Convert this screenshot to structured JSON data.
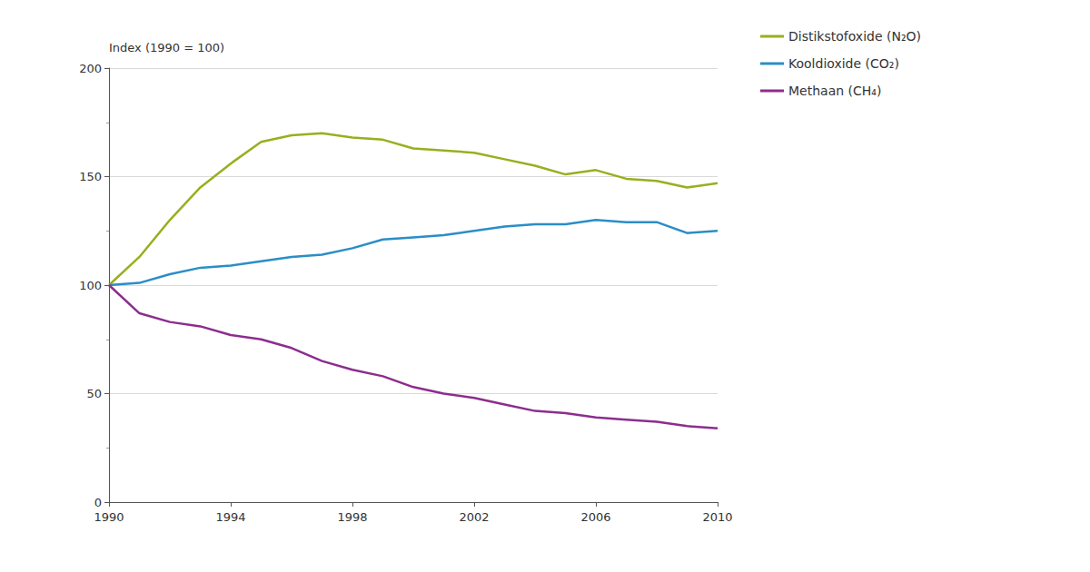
{
  "chart_data": {
    "type": "line",
    "ylabel": "Index (1990 = 100)",
    "x": [
      1990,
      1991,
      1992,
      1993,
      1994,
      1995,
      1996,
      1997,
      1998,
      1999,
      2000,
      2001,
      2002,
      2003,
      2004,
      2005,
      2006,
      2007,
      2008,
      2009,
      2010
    ],
    "series": [
      {
        "name": "Distikstofoxide (N₂O)",
        "color": "#9aae1e",
        "values": [
          100,
          113,
          130,
          145,
          156,
          166,
          169,
          170,
          168,
          167,
          163,
          162,
          161,
          158,
          155,
          151,
          153,
          149,
          148,
          145,
          147
        ]
      },
      {
        "name": "Kooldioxide (CO₂)",
        "color": "#2a8ec6",
        "values": [
          100,
          101,
          105,
          108,
          109,
          111,
          113,
          114,
          117,
          121,
          122,
          123,
          125,
          127,
          128,
          128,
          130,
          129,
          129,
          124,
          125
        ]
      },
      {
        "name": "Methaan (CH₄)",
        "color": "#8c2d8e",
        "values": [
          100,
          87,
          83,
          81,
          77,
          75,
          71,
          65,
          61,
          58,
          53,
          50,
          48,
          45,
          42,
          41,
          39,
          38,
          37,
          35,
          34
        ]
      }
    ],
    "xlim": [
      1990,
      2010
    ],
    "xticks": [
      1990,
      1994,
      1998,
      2002,
      2006,
      2010
    ],
    "ylim": [
      0,
      200
    ],
    "yticks": [
      0,
      50,
      100,
      150,
      200
    ],
    "grid": true,
    "legend": "right"
  }
}
